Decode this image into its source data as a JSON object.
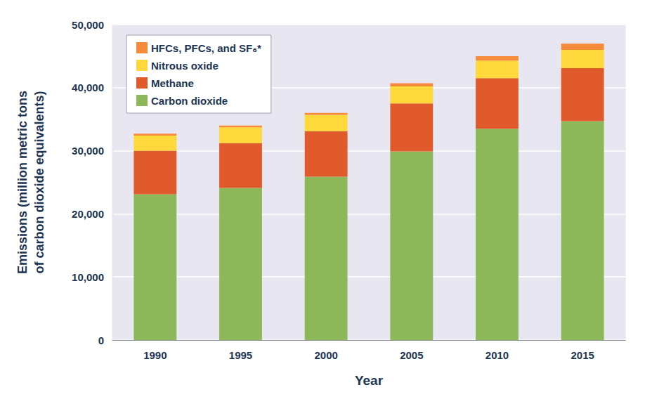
{
  "chart_data": {
    "type": "bar",
    "stacked": true,
    "grid": true,
    "legend": "top-left",
    "x_label": "Year",
    "y_label": "Emissions (million metric tons\nof carbon dioxide equivalents)",
    "categories": [
      "1990",
      "1995",
      "2000",
      "2005",
      "2010",
      "2015"
    ],
    "series": [
      {
        "name": "Carbon dioxide",
        "color": "#8db85a",
        "values": [
          23100,
          24100,
          25900,
          29900,
          33500,
          34700
        ]
      },
      {
        "name": "Methane",
        "color": "#e05a2b",
        "values": [
          6900,
          7100,
          7200,
          7600,
          8000,
          8400
        ]
      },
      {
        "name": "Nitrous oxide",
        "color": "#ffd93b",
        "values": [
          2400,
          2500,
          2600,
          2700,
          2800,
          2900
        ]
      },
      {
        "name": "HFCs, PFCs, and SF₆*",
        "color": "#f68b3c",
        "values": [
          300,
          300,
          300,
          500,
          700,
          1000
        ]
      }
    ],
    "ylim": [
      0,
      50000
    ],
    "yticks": [
      0,
      {
        "value": 10000,
        "label": "10,000"
      },
      {
        "value": 20000,
        "label": "20,000"
      },
      {
        "value": 30000,
        "label": "30,000"
      },
      {
        "value": 40000,
        "label": "40,000"
      },
      {
        "value": 50000,
        "label": "50,000"
      }
    ]
  }
}
